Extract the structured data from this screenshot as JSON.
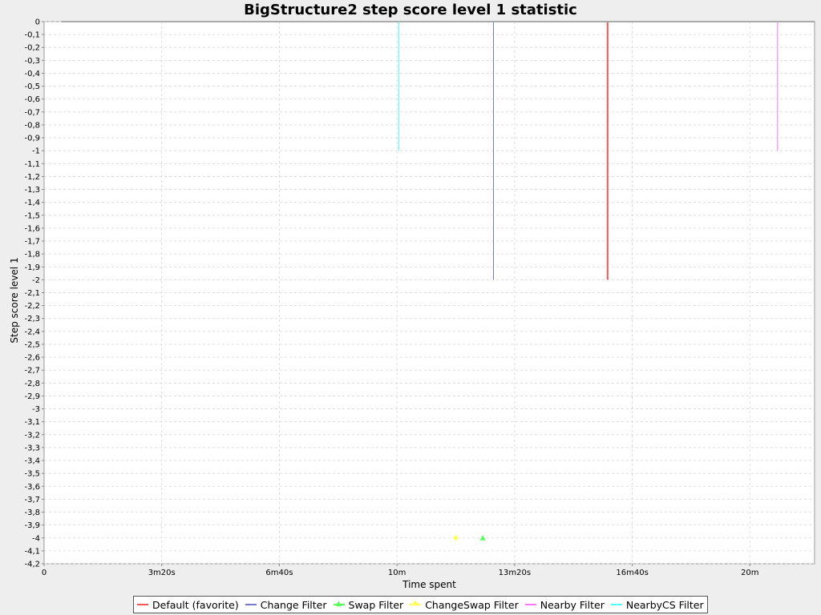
{
  "chart_data": {
    "type": "line",
    "title": "BigStructure2 step score level 1 statistic",
    "xlabel": "Time spent",
    "ylabel": "Step score level 1",
    "xlim_seconds": [
      0,
      1310
    ],
    "ylim": [
      -4.2,
      0
    ],
    "grid": true,
    "legend_position": "bottom",
    "x_ticks": [
      {
        "value": 0,
        "label": "0"
      },
      {
        "value": 200,
        "label": "3m20s"
      },
      {
        "value": 400,
        "label": "6m40s"
      },
      {
        "value": 600,
        "label": "10m"
      },
      {
        "value": 800,
        "label": "13m20s"
      },
      {
        "value": 1000,
        "label": "16m40s"
      },
      {
        "value": 1200,
        "label": "20m"
      }
    ],
    "y_ticks": [
      "0",
      "-0,1",
      "-0,2",
      "-0,3",
      "-0,4",
      "-0,5",
      "-0,6",
      "-0,7",
      "-0,8",
      "-0,9",
      "-1",
      "-1,1",
      "-1,2",
      "-1,3",
      "-1,4",
      "-1,5",
      "-1,6",
      "-1,7",
      "-1,8",
      "-1,9",
      "-2",
      "-2,1",
      "-2,2",
      "-2,3",
      "-2,4",
      "-2,5",
      "-2,6",
      "-2,7",
      "-2,8",
      "-2,9",
      "-3",
      "-3,1",
      "-3,2",
      "-3,3",
      "-3,4",
      "-3,5",
      "-3,6",
      "-3,7",
      "-3,8",
      "-3,9",
      "-4",
      "-4,1",
      "-4,2"
    ],
    "series": [
      {
        "name": "Default (favorite)",
        "color": "#ff5555",
        "marker": "line",
        "points": [
          [
            30,
            0
          ],
          [
            958,
            0
          ],
          [
            958,
            -2
          ],
          [
            958,
            0
          ],
          [
            1310,
            0
          ]
        ]
      },
      {
        "name": "Change Filter",
        "color": "#7777cc",
        "marker": "line",
        "points": [
          [
            30,
            0
          ],
          [
            764,
            0
          ],
          [
            764,
            -2
          ],
          [
            764,
            0
          ],
          [
            1310,
            0
          ]
        ]
      },
      {
        "name": "Swap Filter",
        "color": "#55ff55",
        "marker": "triangle",
        "points": [
          [
            746,
            -4
          ]
        ]
      },
      {
        "name": "ChangeSwap Filter",
        "color": "#ffff55",
        "marker": "diamond",
        "points": [
          [
            700,
            -4
          ]
        ]
      },
      {
        "name": "Nearby Filter",
        "color": "#ff77ff",
        "marker": "line",
        "points": [
          [
            30,
            0
          ],
          [
            1247,
            0
          ],
          [
            1247,
            -1
          ],
          [
            1247,
            0
          ],
          [
            1310,
            0
          ]
        ]
      },
      {
        "name": "NearbyCS Filter",
        "color": "#55ffff",
        "marker": "line",
        "points": [
          [
            30,
            0
          ],
          [
            603,
            0
          ],
          [
            603,
            -1
          ],
          [
            603,
            0
          ],
          [
            1310,
            0
          ]
        ]
      }
    ]
  }
}
